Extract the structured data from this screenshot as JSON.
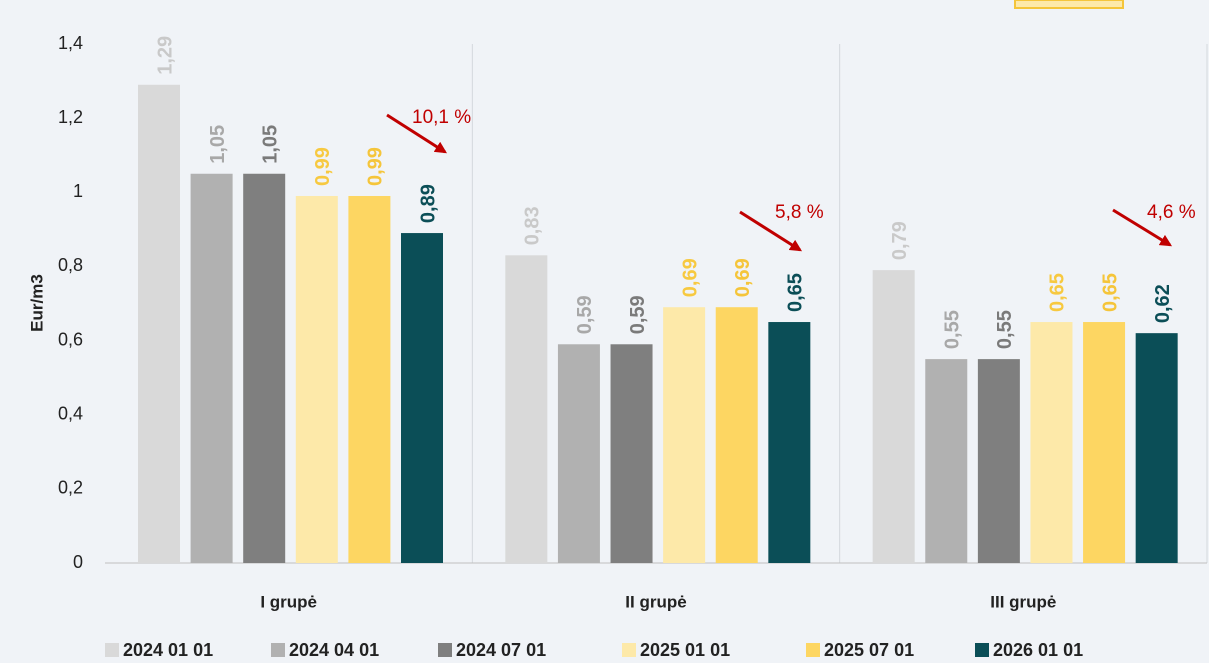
{
  "chart_data": {
    "type": "bar",
    "y_label": "Eur/m3",
    "categories": [
      "I grupė",
      "II grupė",
      "III grupė"
    ],
    "series": [
      {
        "name": "2024 01 01",
        "color": "#d9d9d9",
        "label_color": "#c9c9c9",
        "values": [
          1.29,
          0.83,
          0.79
        ],
        "value_labels": [
          "1,29",
          "0,83",
          "0,79"
        ]
      },
      {
        "name": "2024 04 01",
        "color": "#b1b1b1",
        "label_color": "#a8a8a8",
        "values": [
          1.05,
          0.59,
          0.55
        ],
        "value_labels": [
          "1,05",
          "0,59",
          "0,55"
        ]
      },
      {
        "name": "2024 07 01",
        "color": "#7f7f7f",
        "label_color": "#7a7a7a",
        "values": [
          1.05,
          0.59,
          0.55
        ],
        "value_labels": [
          "1,05",
          "0,59",
          "0,55"
        ]
      },
      {
        "name": "2025 01 01",
        "color": "#fde9a9",
        "label_color": "#f7c940",
        "values": [
          0.99,
          0.69,
          0.65
        ],
        "value_labels": [
          "0,99",
          "0,69",
          "0,65"
        ]
      },
      {
        "name": "2025 07 01",
        "color": "#fdd662",
        "label_color": "#f5c53a",
        "values": [
          0.99,
          0.69,
          0.65
        ],
        "value_labels": [
          "0,99",
          "0,69",
          "0,65"
        ]
      },
      {
        "name": "2026 01 01",
        "color": "#0b4e57",
        "label_color": "#0b4e57",
        "values": [
          0.89,
          0.65,
          0.62
        ],
        "value_labels": [
          "0,89",
          "0,65",
          "0,62"
        ]
      }
    ],
    "ylim": [
      0,
      1.4
    ],
    "yticks": [
      0,
      {
        "value": 0.2,
        "label": "0,2"
      },
      {
        "value": 0.4,
        "label": "0,4"
      },
      {
        "value": 0.6,
        "label": "0,6"
      },
      {
        "value": 0.8,
        "label": "0,8"
      },
      1,
      {
        "value": 1.2,
        "label": "1,2"
      },
      {
        "value": 1.4,
        "label": "1,4"
      }
    ],
    "annotations": [
      "10,1 %",
      "5,8 %",
      "4,6 %"
    ],
    "annotation_color": "#c00000"
  }
}
